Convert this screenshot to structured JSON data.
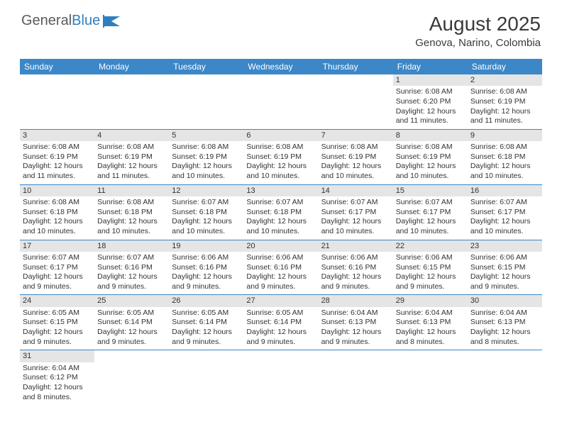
{
  "logo": {
    "text1": "General",
    "text2": "Blue"
  },
  "title": "August 2025",
  "location": "Genova, Narino, Colombia",
  "colors": {
    "header_bg": "#3b87c8",
    "header_text": "#ffffff",
    "daynum_bg": "#e5e5e5",
    "cell_border": "#3b87c8",
    "body_text": "#333333",
    "title_text": "#3a3a3a",
    "logo_gray": "#5a5a5a",
    "logo_blue": "#2f7fbf",
    "page_bg": "#ffffff"
  },
  "weekdays": [
    "Sunday",
    "Monday",
    "Tuesday",
    "Wednesday",
    "Thursday",
    "Friday",
    "Saturday"
  ],
  "weeks": [
    [
      null,
      null,
      null,
      null,
      null,
      {
        "n": "1",
        "sr": "Sunrise: 6:08 AM",
        "ss": "Sunset: 6:20 PM",
        "d1": "Daylight: 12 hours",
        "d2": "and 11 minutes."
      },
      {
        "n": "2",
        "sr": "Sunrise: 6:08 AM",
        "ss": "Sunset: 6:19 PM",
        "d1": "Daylight: 12 hours",
        "d2": "and 11 minutes."
      }
    ],
    [
      {
        "n": "3",
        "sr": "Sunrise: 6:08 AM",
        "ss": "Sunset: 6:19 PM",
        "d1": "Daylight: 12 hours",
        "d2": "and 11 minutes."
      },
      {
        "n": "4",
        "sr": "Sunrise: 6:08 AM",
        "ss": "Sunset: 6:19 PM",
        "d1": "Daylight: 12 hours",
        "d2": "and 11 minutes."
      },
      {
        "n": "5",
        "sr": "Sunrise: 6:08 AM",
        "ss": "Sunset: 6:19 PM",
        "d1": "Daylight: 12 hours",
        "d2": "and 10 minutes."
      },
      {
        "n": "6",
        "sr": "Sunrise: 6:08 AM",
        "ss": "Sunset: 6:19 PM",
        "d1": "Daylight: 12 hours",
        "d2": "and 10 minutes."
      },
      {
        "n": "7",
        "sr": "Sunrise: 6:08 AM",
        "ss": "Sunset: 6:19 PM",
        "d1": "Daylight: 12 hours",
        "d2": "and 10 minutes."
      },
      {
        "n": "8",
        "sr": "Sunrise: 6:08 AM",
        "ss": "Sunset: 6:19 PM",
        "d1": "Daylight: 12 hours",
        "d2": "and 10 minutes."
      },
      {
        "n": "9",
        "sr": "Sunrise: 6:08 AM",
        "ss": "Sunset: 6:18 PM",
        "d1": "Daylight: 12 hours",
        "d2": "and 10 minutes."
      }
    ],
    [
      {
        "n": "10",
        "sr": "Sunrise: 6:08 AM",
        "ss": "Sunset: 6:18 PM",
        "d1": "Daylight: 12 hours",
        "d2": "and 10 minutes."
      },
      {
        "n": "11",
        "sr": "Sunrise: 6:08 AM",
        "ss": "Sunset: 6:18 PM",
        "d1": "Daylight: 12 hours",
        "d2": "and 10 minutes."
      },
      {
        "n": "12",
        "sr": "Sunrise: 6:07 AM",
        "ss": "Sunset: 6:18 PM",
        "d1": "Daylight: 12 hours",
        "d2": "and 10 minutes."
      },
      {
        "n": "13",
        "sr": "Sunrise: 6:07 AM",
        "ss": "Sunset: 6:18 PM",
        "d1": "Daylight: 12 hours",
        "d2": "and 10 minutes."
      },
      {
        "n": "14",
        "sr": "Sunrise: 6:07 AM",
        "ss": "Sunset: 6:17 PM",
        "d1": "Daylight: 12 hours",
        "d2": "and 10 minutes."
      },
      {
        "n": "15",
        "sr": "Sunrise: 6:07 AM",
        "ss": "Sunset: 6:17 PM",
        "d1": "Daylight: 12 hours",
        "d2": "and 10 minutes."
      },
      {
        "n": "16",
        "sr": "Sunrise: 6:07 AM",
        "ss": "Sunset: 6:17 PM",
        "d1": "Daylight: 12 hours",
        "d2": "and 10 minutes."
      }
    ],
    [
      {
        "n": "17",
        "sr": "Sunrise: 6:07 AM",
        "ss": "Sunset: 6:17 PM",
        "d1": "Daylight: 12 hours",
        "d2": "and 9 minutes."
      },
      {
        "n": "18",
        "sr": "Sunrise: 6:07 AM",
        "ss": "Sunset: 6:16 PM",
        "d1": "Daylight: 12 hours",
        "d2": "and 9 minutes."
      },
      {
        "n": "19",
        "sr": "Sunrise: 6:06 AM",
        "ss": "Sunset: 6:16 PM",
        "d1": "Daylight: 12 hours",
        "d2": "and 9 minutes."
      },
      {
        "n": "20",
        "sr": "Sunrise: 6:06 AM",
        "ss": "Sunset: 6:16 PM",
        "d1": "Daylight: 12 hours",
        "d2": "and 9 minutes."
      },
      {
        "n": "21",
        "sr": "Sunrise: 6:06 AM",
        "ss": "Sunset: 6:16 PM",
        "d1": "Daylight: 12 hours",
        "d2": "and 9 minutes."
      },
      {
        "n": "22",
        "sr": "Sunrise: 6:06 AM",
        "ss": "Sunset: 6:15 PM",
        "d1": "Daylight: 12 hours",
        "d2": "and 9 minutes."
      },
      {
        "n": "23",
        "sr": "Sunrise: 6:06 AM",
        "ss": "Sunset: 6:15 PM",
        "d1": "Daylight: 12 hours",
        "d2": "and 9 minutes."
      }
    ],
    [
      {
        "n": "24",
        "sr": "Sunrise: 6:05 AM",
        "ss": "Sunset: 6:15 PM",
        "d1": "Daylight: 12 hours",
        "d2": "and 9 minutes."
      },
      {
        "n": "25",
        "sr": "Sunrise: 6:05 AM",
        "ss": "Sunset: 6:14 PM",
        "d1": "Daylight: 12 hours",
        "d2": "and 9 minutes."
      },
      {
        "n": "26",
        "sr": "Sunrise: 6:05 AM",
        "ss": "Sunset: 6:14 PM",
        "d1": "Daylight: 12 hours",
        "d2": "and 9 minutes."
      },
      {
        "n": "27",
        "sr": "Sunrise: 6:05 AM",
        "ss": "Sunset: 6:14 PM",
        "d1": "Daylight: 12 hours",
        "d2": "and 9 minutes."
      },
      {
        "n": "28",
        "sr": "Sunrise: 6:04 AM",
        "ss": "Sunset: 6:13 PM",
        "d1": "Daylight: 12 hours",
        "d2": "and 9 minutes."
      },
      {
        "n": "29",
        "sr": "Sunrise: 6:04 AM",
        "ss": "Sunset: 6:13 PM",
        "d1": "Daylight: 12 hours",
        "d2": "and 8 minutes."
      },
      {
        "n": "30",
        "sr": "Sunrise: 6:04 AM",
        "ss": "Sunset: 6:13 PM",
        "d1": "Daylight: 12 hours",
        "d2": "and 8 minutes."
      }
    ],
    [
      {
        "n": "31",
        "sr": "Sunrise: 6:04 AM",
        "ss": "Sunset: 6:12 PM",
        "d1": "Daylight: 12 hours",
        "d2": "and 8 minutes."
      },
      null,
      null,
      null,
      null,
      null,
      null
    ]
  ]
}
